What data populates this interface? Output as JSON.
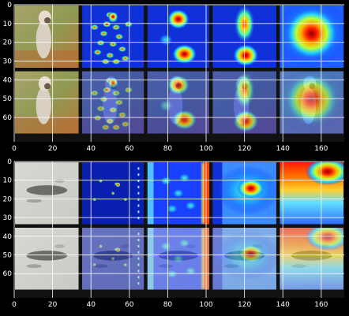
{
  "figure": {
    "panels": [
      {
        "name": "top",
        "subject": "dog",
        "xlim": [
          0,
          172
        ],
        "ylim": [
          73,
          0
        ],
        "xticks": [
          0,
          20,
          40,
          60,
          80,
          100,
          120,
          140,
          160
        ],
        "yticks": [
          0,
          10,
          20,
          30,
          40,
          50,
          60
        ],
        "rows": [
          "original",
          "overlay"
        ],
        "columns": [
          "image",
          "edge-saliency",
          "spot-map",
          "vertical-spot-map",
          "broad-heatmap"
        ]
      },
      {
        "name": "bottom",
        "subject": "lizard-on-sand",
        "xlim": [
          0,
          172
        ],
        "ylim": [
          73,
          0
        ],
        "xticks": [
          0,
          20,
          40,
          60,
          80,
          100,
          120,
          140,
          160
        ],
        "yticks": [
          0,
          10,
          20,
          30,
          40,
          50,
          60
        ],
        "rows": [
          "original",
          "overlay"
        ],
        "columns": [
          "image",
          "sparse-saliency",
          "edge-heatmap",
          "center-heatmap",
          "top-heatmap"
        ]
      }
    ]
  },
  "chart_data": [
    {
      "type": "heatmap",
      "title": "",
      "xlabel": "",
      "ylabel": "",
      "xlim": [
        0,
        172
      ],
      "ylim": [
        73,
        0
      ],
      "xticks": [
        0,
        20,
        40,
        60,
        80,
        100,
        120,
        140,
        160
      ],
      "yticks": [
        0,
        10,
        20,
        30,
        40,
        50,
        60
      ],
      "grid": true,
      "tiles": [
        {
          "row": "original",
          "col": 1,
          "content": "dog photo"
        },
        {
          "row": "original",
          "col": 2,
          "content": "edge saliency"
        },
        {
          "row": "original",
          "col": 3,
          "content": "two hot spots"
        },
        {
          "row": "original",
          "col": 4,
          "content": "vertical hot band"
        },
        {
          "row": "original",
          "col": 5,
          "content": "broad hot blob"
        },
        {
          "row": "overlay",
          "col": 1,
          "content": "dog photo"
        },
        {
          "row": "overlay",
          "col": 2,
          "content": "edge saliency overlay"
        },
        {
          "row": "overlay",
          "col": 3,
          "content": "two hot spots overlay"
        },
        {
          "row": "overlay",
          "col": 4,
          "content": "vertical hot band overlay"
        },
        {
          "row": "overlay",
          "col": 5,
          "content": "broad hot blob overlay"
        }
      ]
    },
    {
      "type": "heatmap",
      "title": "",
      "xlabel": "",
      "ylabel": "",
      "xlim": [
        0,
        172
      ],
      "ylim": [
        73,
        0
      ],
      "xticks": [
        0,
        20,
        40,
        60,
        80,
        100,
        120,
        140,
        160
      ],
      "yticks": [
        0,
        10,
        20,
        30,
        40,
        50,
        60
      ],
      "grid": true,
      "tiles": [
        {
          "row": "original",
          "col": 1,
          "content": "lizard on sand photo"
        },
        {
          "row": "original",
          "col": 2,
          "content": "sparse saliency"
        },
        {
          "row": "original",
          "col": 3,
          "content": "edge heatmap"
        },
        {
          "row": "original",
          "col": 4,
          "content": "central hot spot"
        },
        {
          "row": "original",
          "col": 5,
          "content": "top hot band"
        },
        {
          "row": "overlay",
          "col": 1,
          "content": "lizard on sand photo"
        },
        {
          "row": "overlay",
          "col": 2,
          "content": "sparse saliency overlay"
        },
        {
          "row": "overlay",
          "col": 3,
          "content": "edge heatmap overlay"
        },
        {
          "row": "overlay",
          "col": 4,
          "content": "central hot spot overlay"
        },
        {
          "row": "overlay",
          "col": 5,
          "content": "top hot band overlay"
        }
      ]
    }
  ]
}
